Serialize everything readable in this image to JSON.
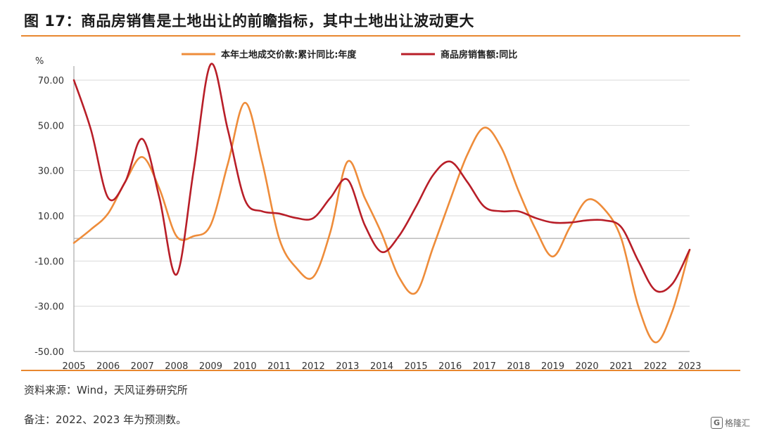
{
  "title": "图 17：商品房销售是土地出让的前瞻指标，其中土地出让波动更大",
  "source": "资料来源：Wind，天风证券研究所",
  "note": "备注：2022、2023 年为预测数。",
  "watermark": "格隆汇",
  "watermark_icon": "G",
  "chart_data": {
    "type": "line",
    "ylabel": "%",
    "ylim": [
      -50,
      70
    ],
    "yticks": [
      "70.00",
      "50.00",
      "30.00",
      "10.00",
      "-10.00",
      "-30.00",
      "-50.00"
    ],
    "ytick_values": [
      70,
      50,
      30,
      10,
      -10,
      -30,
      -50
    ],
    "categories": [
      "2005",
      "2006",
      "2007",
      "2008",
      "2009",
      "2010",
      "2011",
      "2012",
      "2013",
      "2014",
      "2015",
      "2016",
      "2017",
      "2018",
      "2019",
      "2020",
      "2021",
      "2022",
      "2023"
    ],
    "grid": "horizontal",
    "legend_position": "top",
    "series": [
      {
        "name": "本年土地成交价款:累计同比:年度",
        "color": "#ee8c3a",
        "x": [
          2005,
          2005.5,
          2006,
          2006.5,
          2007,
          2007.5,
          2008,
          2008.5,
          2009,
          2009.5,
          2010,
          2010.5,
          2011,
          2011.5,
          2012,
          2012.5,
          2013,
          2013.5,
          2014,
          2014.5,
          2015,
          2015.5,
          2016,
          2016.5,
          2017,
          2017.5,
          2018,
          2018.5,
          2019,
          2019.5,
          2020,
          2020.5,
          2021,
          2021.5,
          2022,
          2022.5,
          2023
        ],
        "values": [
          -2,
          4,
          11,
          25,
          36,
          22,
          1,
          1,
          6,
          33,
          60,
          34,
          0,
          -13,
          -17,
          3,
          34,
          18,
          2,
          -17,
          -24,
          -4,
          17,
          37,
          49,
          40,
          21,
          4,
          -8,
          5,
          17,
          13,
          0,
          -30,
          -46,
          -32,
          -5
        ]
      },
      {
        "name": "商品房销售额:同比",
        "color": "#b81e28",
        "x": [
          2005,
          2005.5,
          2006,
          2006.5,
          2007,
          2007.5,
          2008,
          2008.5,
          2009,
          2009.5,
          2010,
          2010.5,
          2011,
          2011.5,
          2012,
          2012.5,
          2013,
          2013.5,
          2014,
          2014.5,
          2015,
          2015.5,
          2016,
          2016.5,
          2017,
          2017.5,
          2018,
          2018.5,
          2019,
          2019.5,
          2020,
          2020.5,
          2021,
          2021.5,
          2022,
          2022.5,
          2023
        ],
        "values": [
          70,
          48,
          18,
          25,
          44,
          18,
          -16,
          30,
          77,
          48,
          17,
          12,
          11,
          9,
          9,
          18,
          26,
          6,
          -6,
          1,
          14,
          28,
          34,
          25,
          14,
          12,
          12,
          9,
          7,
          7,
          8,
          8,
          5,
          -10,
          -23,
          -20,
          -5
        ]
      }
    ]
  }
}
